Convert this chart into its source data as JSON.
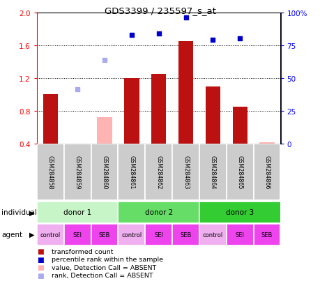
{
  "title": "GDS3399 / 235597_s_at",
  "samples": [
    "GSM284858",
    "GSM284859",
    "GSM284860",
    "GSM284861",
    "GSM284862",
    "GSM284863",
    "GSM284864",
    "GSM284865",
    "GSM284866"
  ],
  "red_values": [
    1.0,
    null,
    null,
    1.2,
    1.25,
    1.65,
    1.1,
    0.85,
    null
  ],
  "red_absent_values": [
    null,
    null,
    0.72,
    null,
    null,
    null,
    null,
    null,
    0.42
  ],
  "blue_values": [
    null,
    null,
    null,
    0.83,
    0.84,
    0.96,
    0.79,
    0.8,
    null
  ],
  "blue_absent_values": [
    null,
    0.415,
    0.635,
    null,
    null,
    null,
    null,
    null,
    null
  ],
  "ylim_left": [
    0.4,
    2.0
  ],
  "ylim_right": [
    0,
    100
  ],
  "yticks_left": [
    0.4,
    0.8,
    1.2,
    1.6,
    2.0
  ],
  "yticks_right": [
    0,
    25,
    50,
    75,
    100
  ],
  "ytick_labels_right": [
    "0",
    "25",
    "50",
    "75",
    "100%"
  ],
  "donors": [
    {
      "label": "donor 1",
      "start": 0,
      "end": 3,
      "color": "#c8f5c8"
    },
    {
      "label": "donor 2",
      "start": 3,
      "end": 6,
      "color": "#66dd66"
    },
    {
      "label": "donor 3",
      "start": 6,
      "end": 9,
      "color": "#33cc33"
    }
  ],
  "agents": [
    "control",
    "SEI",
    "SEB",
    "control",
    "SEI",
    "SEB",
    "control",
    "SEI",
    "SEB"
  ],
  "bar_color": "#bb1111",
  "absent_bar_color": "#ffb3b3",
  "blue_color": "#0000cc",
  "blue_absent_color": "#aaaaee",
  "legend": [
    {
      "color": "#bb1111",
      "label": "transformed count"
    },
    {
      "color": "#0000cc",
      "label": "percentile rank within the sample"
    },
    {
      "color": "#ffb3b3",
      "label": "value, Detection Call = ABSENT"
    },
    {
      "color": "#aaaaee",
      "label": "rank, Detection Call = ABSENT"
    }
  ],
  "bar_width": 0.55
}
